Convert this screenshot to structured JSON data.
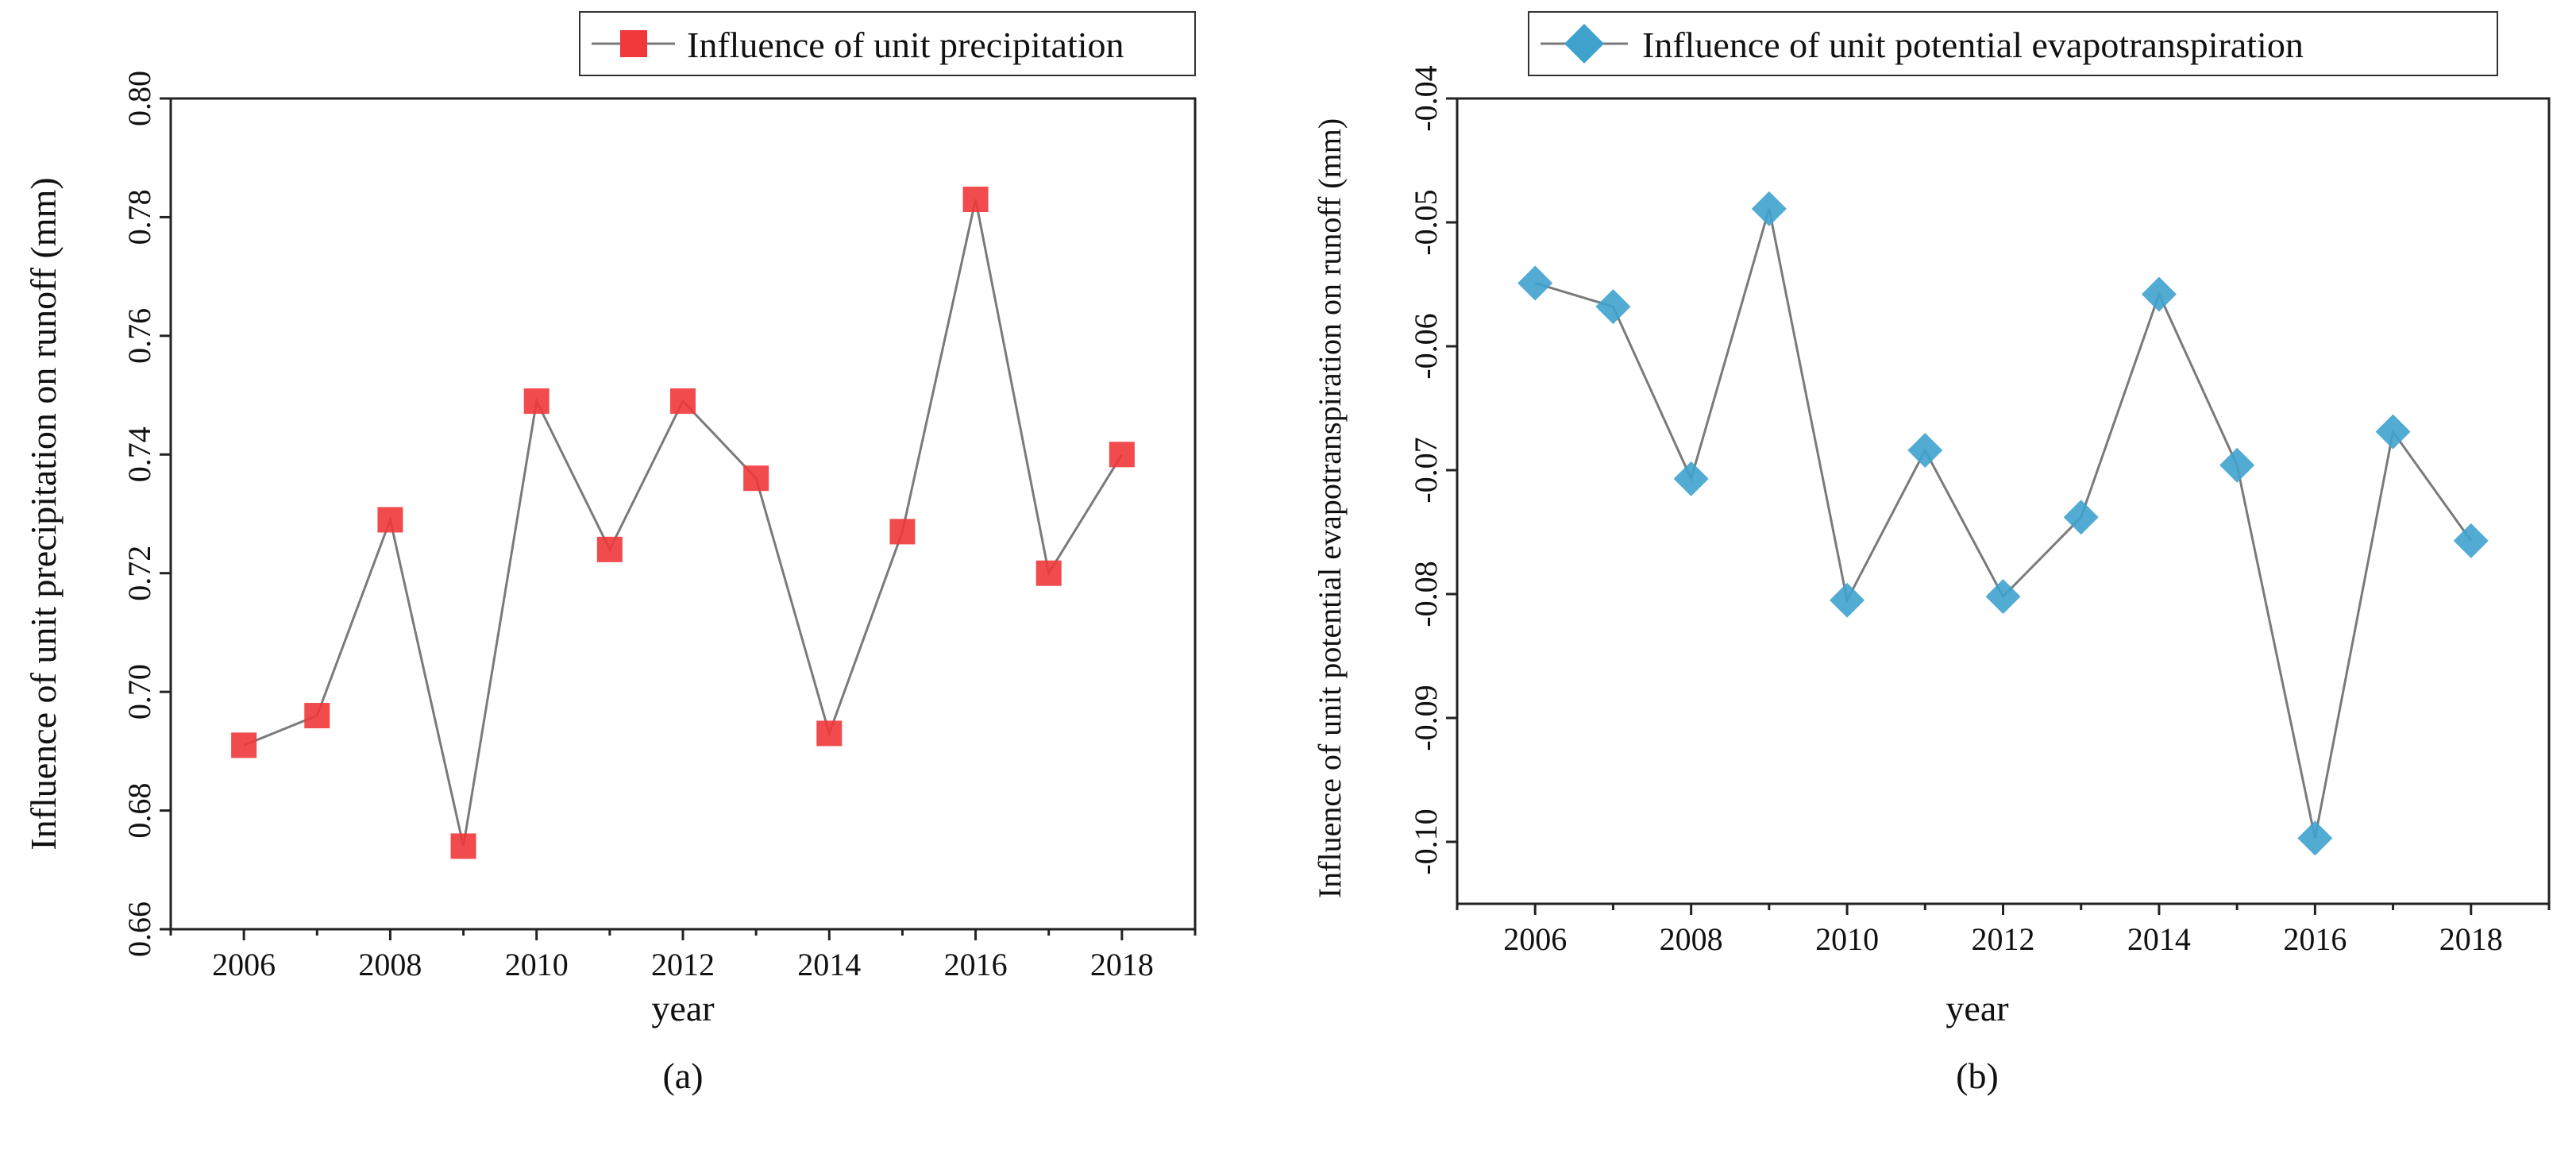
{
  "chart_data": [
    {
      "panel": "(a)",
      "type": "line",
      "title": "",
      "xlabel": "year",
      "ylabel": "Influence of unit precipitation on runoff (mm)",
      "xlim": [
        2005,
        2019
      ],
      "ylim": [
        0.66,
        0.8
      ],
      "xticks": [
        2006,
        2008,
        2010,
        2012,
        2014,
        2016,
        2018
      ],
      "xtick_labels": [
        "2006",
        "2008",
        "2010",
        "2012",
        "2014",
        "2016",
        "2018"
      ],
      "yticks": [
        0.66,
        0.68,
        0.7,
        0.72,
        0.74,
        0.76,
        0.78,
        0.8
      ],
      "ytick_labels": [
        "0.66",
        "0.68",
        "0.70",
        "0.72",
        "0.74",
        "0.76",
        "0.78",
        "0.80"
      ],
      "grid": false,
      "legend": "top-right",
      "series": [
        {
          "name": "Influence of unit precipitation",
          "marker": "square",
          "color": "#f0373a",
          "line_color": "#7a7a7a",
          "x": [
            2006,
            2007,
            2008,
            2009,
            2010,
            2011,
            2012,
            2013,
            2014,
            2015,
            2016,
            2017,
            2018
          ],
          "values": [
            0.691,
            0.696,
            0.729,
            0.674,
            0.749,
            0.724,
            0.749,
            0.736,
            0.693,
            0.727,
            0.783,
            0.72,
            0.74
          ]
        }
      ]
    },
    {
      "panel": "(b)",
      "type": "line",
      "title": "",
      "xlabel": "year",
      "ylabel": "Influence of unit potential evapotranspiration on runoff (mm)",
      "xlim": [
        2005,
        2019
      ],
      "ylim": [
        -0.105,
        -0.04
      ],
      "xticks": [
        2006,
        2008,
        2010,
        2012,
        2014,
        2016,
        2018
      ],
      "xtick_labels": [
        "2006",
        "2008",
        "2010",
        "2012",
        "2014",
        "2016",
        "2018"
      ],
      "yticks": [
        -0.1,
        -0.09,
        -0.08,
        -0.07,
        -0.06,
        -0.05,
        -0.04
      ],
      "ytick_labels": [
        "-0.10",
        "-0.09",
        "-0.08",
        "-0.07",
        "-0.06",
        "-0.05",
        "-0.04"
      ],
      "grid": false,
      "legend": "top-right",
      "series": [
        {
          "name": "Influence of unit potential evapotranspiration",
          "marker": "diamond",
          "color": "#3fa2cd",
          "line_color": "#7a7a7a",
          "x": [
            2006,
            2007,
            2008,
            2009,
            2010,
            2011,
            2012,
            2013,
            2014,
            2015,
            2016,
            2017,
            2018
          ],
          "values": [
            -0.0549,
            -0.0568,
            -0.0707,
            -0.0489,
            -0.0805,
            -0.0684,
            -0.0802,
            -0.0738,
            -0.0558,
            -0.0696,
            -0.0997,
            -0.0669,
            -0.0757
          ]
        }
      ]
    }
  ]
}
